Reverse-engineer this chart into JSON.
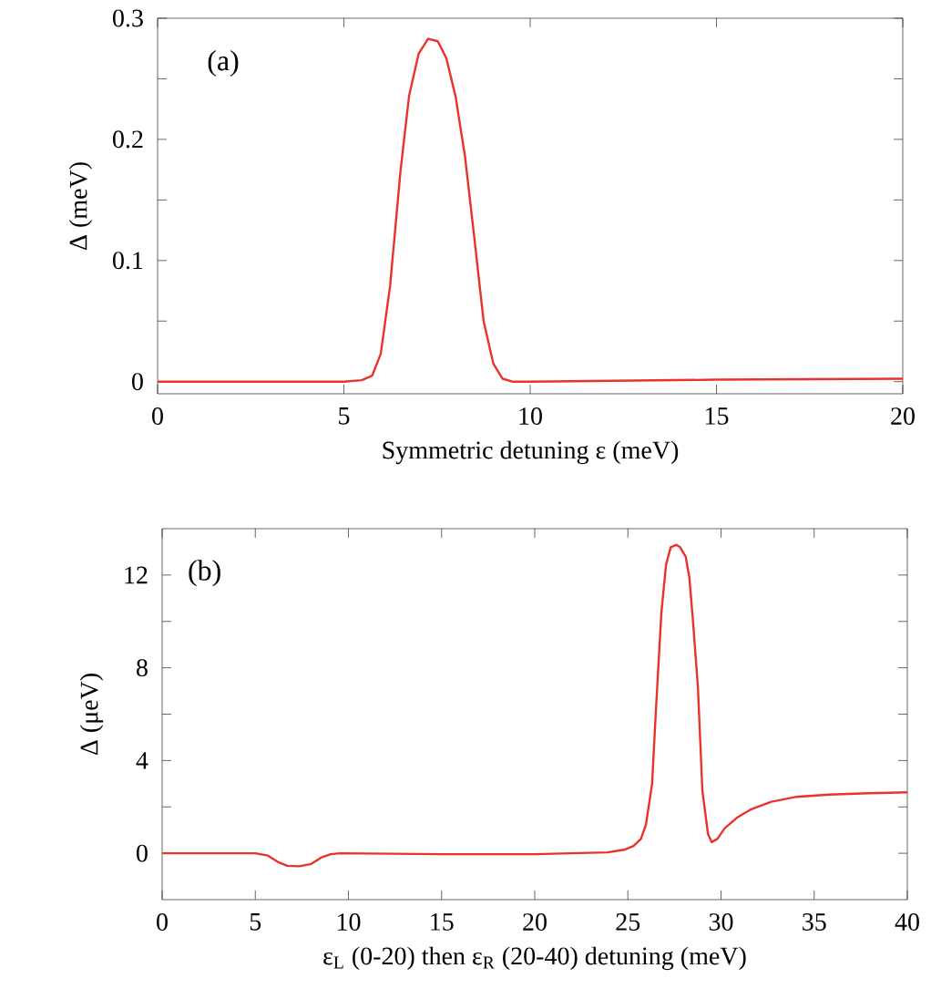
{
  "chart_data": [
    {
      "type": "line",
      "xlabel": "Symmetric detuning ε (meV)",
      "ylabel": "Δ (meV)",
      "annotations": [
        "(a)"
      ],
      "color": "#e8322a",
      "marker": "none",
      "line_style": "solid",
      "grid": false,
      "x": [
        0,
        5,
        5.48,
        5.76,
        5.99,
        6.24,
        6.52,
        6.75,
        7.01,
        7.26,
        7.52,
        7.75,
        8.0,
        8.25,
        8.5,
        8.75,
        9.01,
        9.26,
        9.52,
        10,
        15,
        20
      ],
      "values": [
        0,
        0,
        0.0012,
        0.005,
        0.023,
        0.079,
        0.174,
        0.236,
        0.271,
        0.283,
        0.281,
        0.267,
        0.235,
        0.186,
        0.119,
        0.05,
        0.015,
        0.0024,
        0,
        0,
        0.0016,
        0.0024
      ],
      "xlim": [
        0,
        20
      ],
      "ylim": [
        -0.01,
        0.3
      ],
      "xticks": [
        0,
        5,
        10,
        15,
        20
      ],
      "yticks": [
        0,
        {
          "value": 0.05,
          "label": null
        },
        0.1,
        {
          "value": 0.15,
          "label": null
        },
        0.2,
        {
          "value": 0.25,
          "label": null
        },
        0.3
      ]
    },
    {
      "type": "line",
      "xlabel": "ε$_{L}$ (0-20) then ε$_{R}$ (20-40) detuning (meV)",
      "ylabel": "Δ (μeV)",
      "annotations": [
        "(b)"
      ],
      "color": "#e8322a",
      "marker": "none",
      "line_style": "solid",
      "grid": false,
      "x": [
        0,
        5,
        5.68,
        6.2,
        6.72,
        7.36,
        8.0,
        8.53,
        9.04,
        9.56,
        15.1,
        20,
        23.9,
        24.8,
        25.3,
        25.7,
        25.97,
        26.3,
        26.5,
        26.8,
        27.05,
        27.3,
        27.6,
        27.8,
        28.1,
        28.3,
        28.5,
        28.76,
        29.0,
        29.3,
        29.5,
        29.8,
        30.2,
        30.9,
        31.65,
        32.7,
        34.0,
        35.8,
        37.9,
        40
      ],
      "values": [
        0,
        0,
        -0.1,
        -0.37,
        -0.54,
        -0.56,
        -0.46,
        -0.19,
        -0.04,
        0,
        -0.04,
        -0.04,
        0.04,
        0.15,
        0.31,
        0.62,
        1.24,
        3.0,
        6.1,
        10.4,
        12.45,
        13.2,
        13.3,
        13.2,
        12.8,
        11.9,
        9.96,
        7.16,
        2.7,
        0.83,
        0.48,
        0.62,
        1.08,
        1.56,
        1.91,
        2.22,
        2.43,
        2.53,
        2.59,
        2.63
      ],
      "xlim": [
        0,
        40
      ],
      "ylim": [
        -2,
        14
      ],
      "xticks": [
        0,
        5,
        10,
        15,
        20,
        25,
        30,
        35,
        40
      ],
      "yticks": [
        0,
        {
          "value": 2,
          "label": null
        },
        4,
        {
          "value": 6,
          "label": null
        },
        8,
        {
          "value": 10,
          "label": null
        },
        12
      ]
    }
  ]
}
